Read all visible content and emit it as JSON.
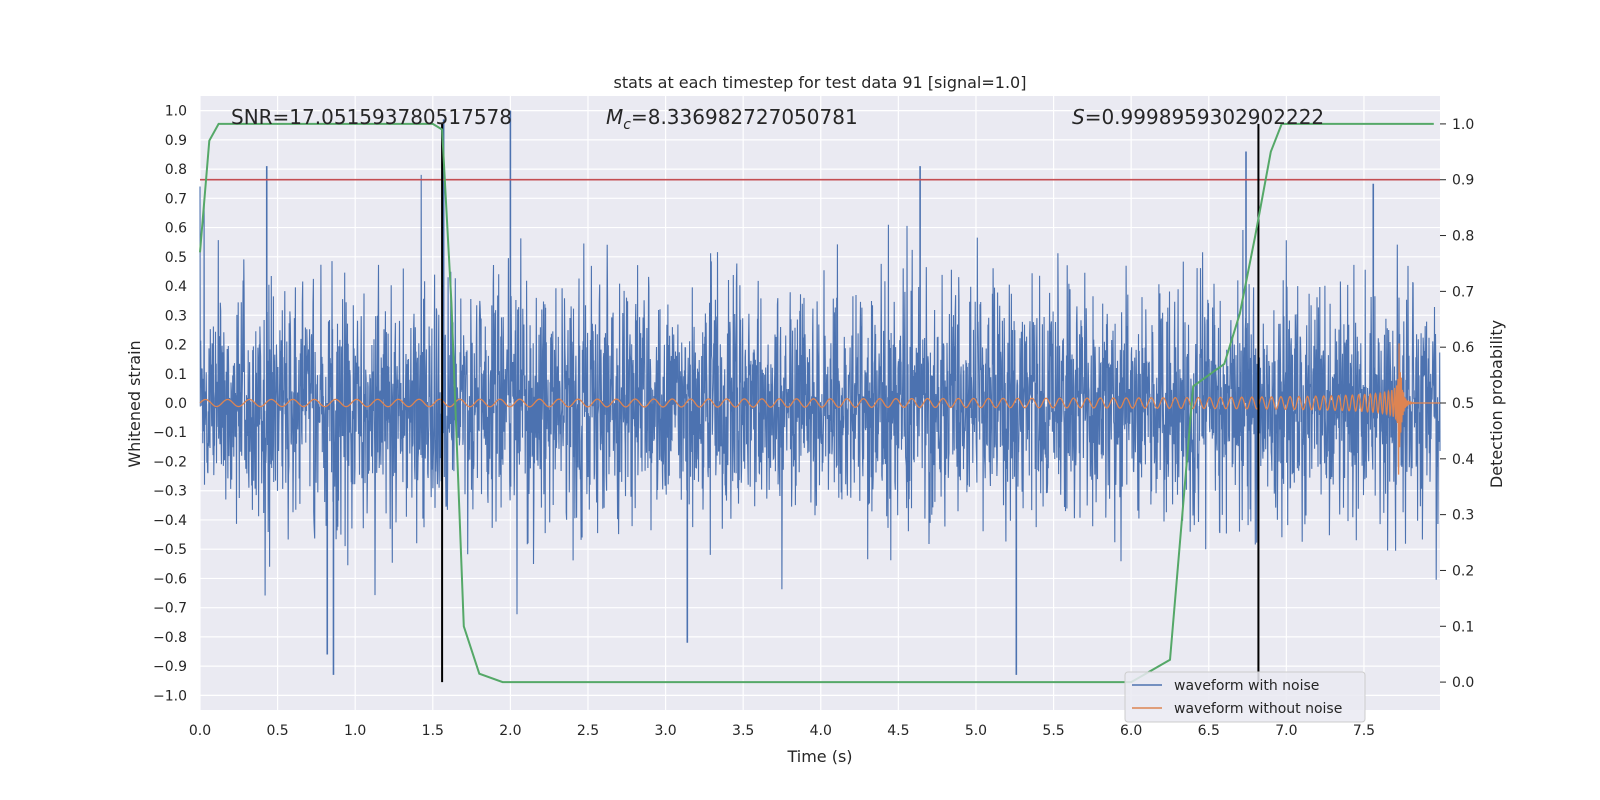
{
  "chart_data": {
    "type": "line",
    "title": "stats at each timestep for test data 91 [signal=1.0]",
    "xlabel": "Time (s)",
    "ylabel": "Whitened strain",
    "ylabel_right": "Detection probability",
    "xlim": [
      0.0,
      7.99
    ],
    "ylim": [
      -1.05,
      1.05
    ],
    "ylim_right": [
      -0.05,
      1.05
    ],
    "xticks": [
      0.0,
      0.5,
      1.0,
      1.5,
      2.0,
      2.5,
      3.0,
      3.5,
      4.0,
      4.5,
      5.0,
      5.5,
      6.0,
      6.5,
      7.0,
      7.5
    ],
    "xtick_labels": [
      "0.0",
      "0.5",
      "1.0",
      "1.5",
      "2.0",
      "2.5",
      "3.0",
      "3.5",
      "4.0",
      "4.5",
      "5.0",
      "5.5",
      "6.0",
      "6.5",
      "7.0",
      "7.5"
    ],
    "yticks": [
      1.0,
      0.9,
      0.8,
      0.7,
      0.6,
      0.5,
      0.4,
      0.3,
      0.2,
      0.1,
      0.0,
      -0.1,
      -0.2,
      -0.3,
      -0.4,
      -0.5,
      -0.6,
      -0.7,
      -0.8,
      -0.9,
      -1.0
    ],
    "ytick_labels": [
      "1.0",
      "0.9",
      "0.8",
      "0.7",
      "0.6",
      "0.5",
      "0.4",
      "0.3",
      "0.2",
      "0.1",
      "0.0",
      "−0.1",
      "−0.2",
      "−0.3",
      "−0.4",
      "−0.5",
      "−0.6",
      "−0.7",
      "−0.8",
      "−0.9",
      "−1.0"
    ],
    "yticks_right": [
      1.0,
      0.9,
      0.8,
      0.7,
      0.6,
      0.5,
      0.4,
      0.3,
      0.2,
      0.1,
      0.0
    ],
    "ytick_labels_right": [
      "1.0",
      "0.9",
      "0.8",
      "0.7",
      "0.6",
      "0.5",
      "0.4",
      "0.3",
      "0.2",
      "0.1",
      "0.0"
    ],
    "grid": true,
    "annotations": {
      "snr": "SNR=17.051593780517578",
      "mc_symbol": "M",
      "mc_sub": "c",
      "mc_value": "=8.336982727050781",
      "s_symbol": "S",
      "s_value": "=0.9998959302902222"
    },
    "threshold_line": {
      "y_right": 0.9,
      "color": "#c44e52"
    },
    "vertical_lines": {
      "x": [
        1.56,
        6.82
      ],
      "color": "#000000"
    },
    "series": [
      {
        "name": "waveform with noise",
        "color": "#4c72b0",
        "axis": "left",
        "description_values": {
          "typical_amplitude": 0.33,
          "max": 1.0,
          "min": -0.93
        },
        "spikes": [
          {
            "x": 0.43,
            "y": 0.81
          },
          {
            "x": 0.86,
            "y": -0.93
          },
          {
            "x": 0.82,
            "y": -0.86
          },
          {
            "x": 1.57,
            "y": 0.97
          },
          {
            "x": 2.0,
            "y": 1.0
          },
          {
            "x": 3.14,
            "y": -0.82
          },
          {
            "x": 4.64,
            "y": 0.81
          },
          {
            "x": 5.26,
            "y": -0.93
          },
          {
            "x": 6.74,
            "y": 0.86
          },
          {
            "x": 7.56,
            "y": 0.75
          }
        ]
      },
      {
        "name": "waveform without noise",
        "color": "#dd8452",
        "axis": "left",
        "description_values": {
          "start_amplitude": 0.012,
          "peak_x": 7.7,
          "peak_y": 0.6,
          "min_y": -0.39,
          "merger_x": 7.72
        }
      },
      {
        "name": "detection probability",
        "color": "#55a868",
        "axis": "right",
        "x": [
          0.0,
          0.06,
          0.12,
          0.2,
          0.4,
          0.8,
          1.2,
          1.5,
          1.56,
          1.62,
          1.7,
          1.8,
          1.95,
          2.2,
          3.0,
          4.0,
          5.0,
          6.0,
          6.25,
          6.4,
          6.5,
          6.6,
          6.7,
          6.8,
          6.9,
          6.97,
          7.1,
          7.5,
          7.95
        ],
        "y": [
          0.77,
          0.97,
          1.0,
          1.0,
          1.0,
          1.0,
          1.0,
          1.0,
          0.99,
          0.68,
          0.1,
          0.015,
          0.0,
          0.0,
          0.0,
          0.0,
          0.0,
          0.0,
          0.04,
          0.53,
          0.55,
          0.57,
          0.66,
          0.8,
          0.95,
          1.0,
          1.0,
          1.0,
          1.0
        ]
      }
    ],
    "legend": {
      "placement": "lower-right",
      "entries": [
        "waveform with noise",
        "waveform without noise"
      ]
    }
  }
}
